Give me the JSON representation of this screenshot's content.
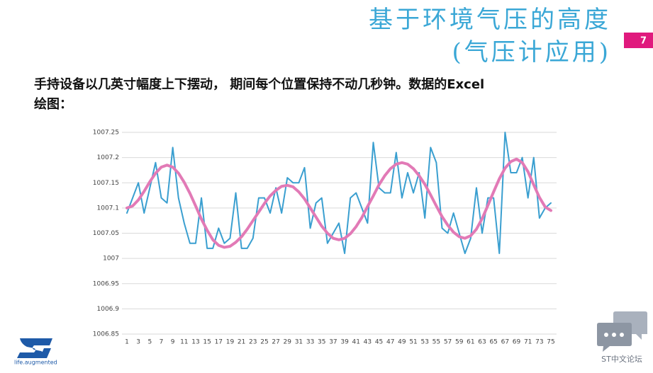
{
  "slide": {
    "title": "基于环境气压的高度",
    "subtitle": "(气压计应用)",
    "page_number": "7",
    "body_line1": "手持设备以几英寸幅度上下摆动， 期间每个位置保持不动几秒钟。数据的Excel",
    "body_line2": "绘图：",
    "logo_tagline": "life.augmented",
    "forum_label": "ST中文论坛"
  },
  "chart_data": {
    "type": "line",
    "categories": [
      1,
      null,
      3,
      null,
      5,
      null,
      7,
      null,
      9,
      null,
      11,
      null,
      13,
      null,
      15,
      null,
      17,
      null,
      19,
      null,
      21,
      null,
      23,
      null,
      25,
      null,
      27,
      null,
      29,
      null,
      31,
      null,
      33,
      null,
      35,
      null,
      37,
      null,
      39,
      null,
      41,
      null,
      43,
      null,
      45,
      null,
      47,
      null,
      49,
      null,
      51,
      null,
      53,
      null,
      55,
      null,
      57,
      null,
      59,
      null,
      61,
      null,
      63,
      null,
      65,
      null,
      67,
      null,
      69,
      null,
      71,
      null,
      73,
      null,
      75
    ],
    "series": [
      {
        "color": "#3a9fd0",
        "values": [
          1007.09,
          1007.12,
          1007.15,
          1007.09,
          1007.14,
          1007.19,
          1007.12,
          1007.11,
          1007.22,
          1007.12,
          1007.07,
          1007.03,
          1007.03,
          1007.12,
          1007.02,
          1007.02,
          1007.06,
          1007.03,
          1007.04,
          1007.13,
          1007.02,
          1007.02,
          1007.04,
          1007.12,
          1007.12,
          1007.09,
          1007.14,
          1007.09,
          1007.16,
          1007.15,
          1007.15,
          1007.18,
          1007.06,
          1007.11,
          1007.12,
          1007.03,
          1007.05,
          1007.07,
          1007.01,
          1007.12,
          1007.13,
          1007.1,
          1007.07,
          1007.23,
          1007.14,
          1007.13,
          1007.13,
          1007.21,
          1007.12,
          1007.17,
          1007.13,
          1007.17,
          1007.08,
          1007.22,
          1007.19,
          1007.06,
          1007.05,
          1007.09,
          1007.05,
          1007.01,
          1007.04,
          1007.14,
          1007.05,
          1007.12,
          1007.12,
          1007.01,
          1007.25,
          1007.17,
          1007.17,
          1007.2,
          1007.12,
          1007.2,
          1007.08,
          1007.1,
          1007.11
        ]
      },
      {
        "color": "#e27ab6",
        "values": [
          1007.1,
          1007.104,
          1007.116,
          1007.133,
          1007.152,
          1007.169,
          1007.181,
          1007.185,
          1007.181,
          1007.169,
          1007.151,
          1007.129,
          1007.104,
          1007.078,
          1007.056,
          1007.037,
          1007.026,
          1007.022,
          1007.024,
          1007.032,
          1007.043,
          1007.058,
          1007.075,
          1007.092,
          1007.109,
          1007.124,
          1007.135,
          1007.143,
          1007.145,
          1007.142,
          1007.132,
          1007.118,
          1007.1,
          1007.082,
          1007.064,
          1007.05,
          1007.04,
          1007.037,
          1007.04,
          1007.049,
          1007.063,
          1007.081,
          1007.103,
          1007.124,
          1007.146,
          1007.164,
          1007.178,
          1007.187,
          1007.19,
          1007.187,
          1007.178,
          1007.164,
          1007.147,
          1007.126,
          1007.104,
          1007.083,
          1007.066,
          1007.052,
          1007.043,
          1007.04,
          1007.045,
          1007.058,
          1007.079,
          1007.105,
          1007.132,
          1007.158,
          1007.179,
          1007.192,
          1007.197,
          1007.19,
          1007.172,
          1007.146,
          1007.121,
          1007.102,
          1007.095
        ]
      }
    ],
    "ylim": [
      1006.85,
      1007.25
    ],
    "yticks": [
      1006.85,
      1006.9,
      1006.95,
      1007,
      1007.05,
      1007.1,
      1007.15,
      1007.2,
      1007.25
    ],
    "grid": true
  }
}
